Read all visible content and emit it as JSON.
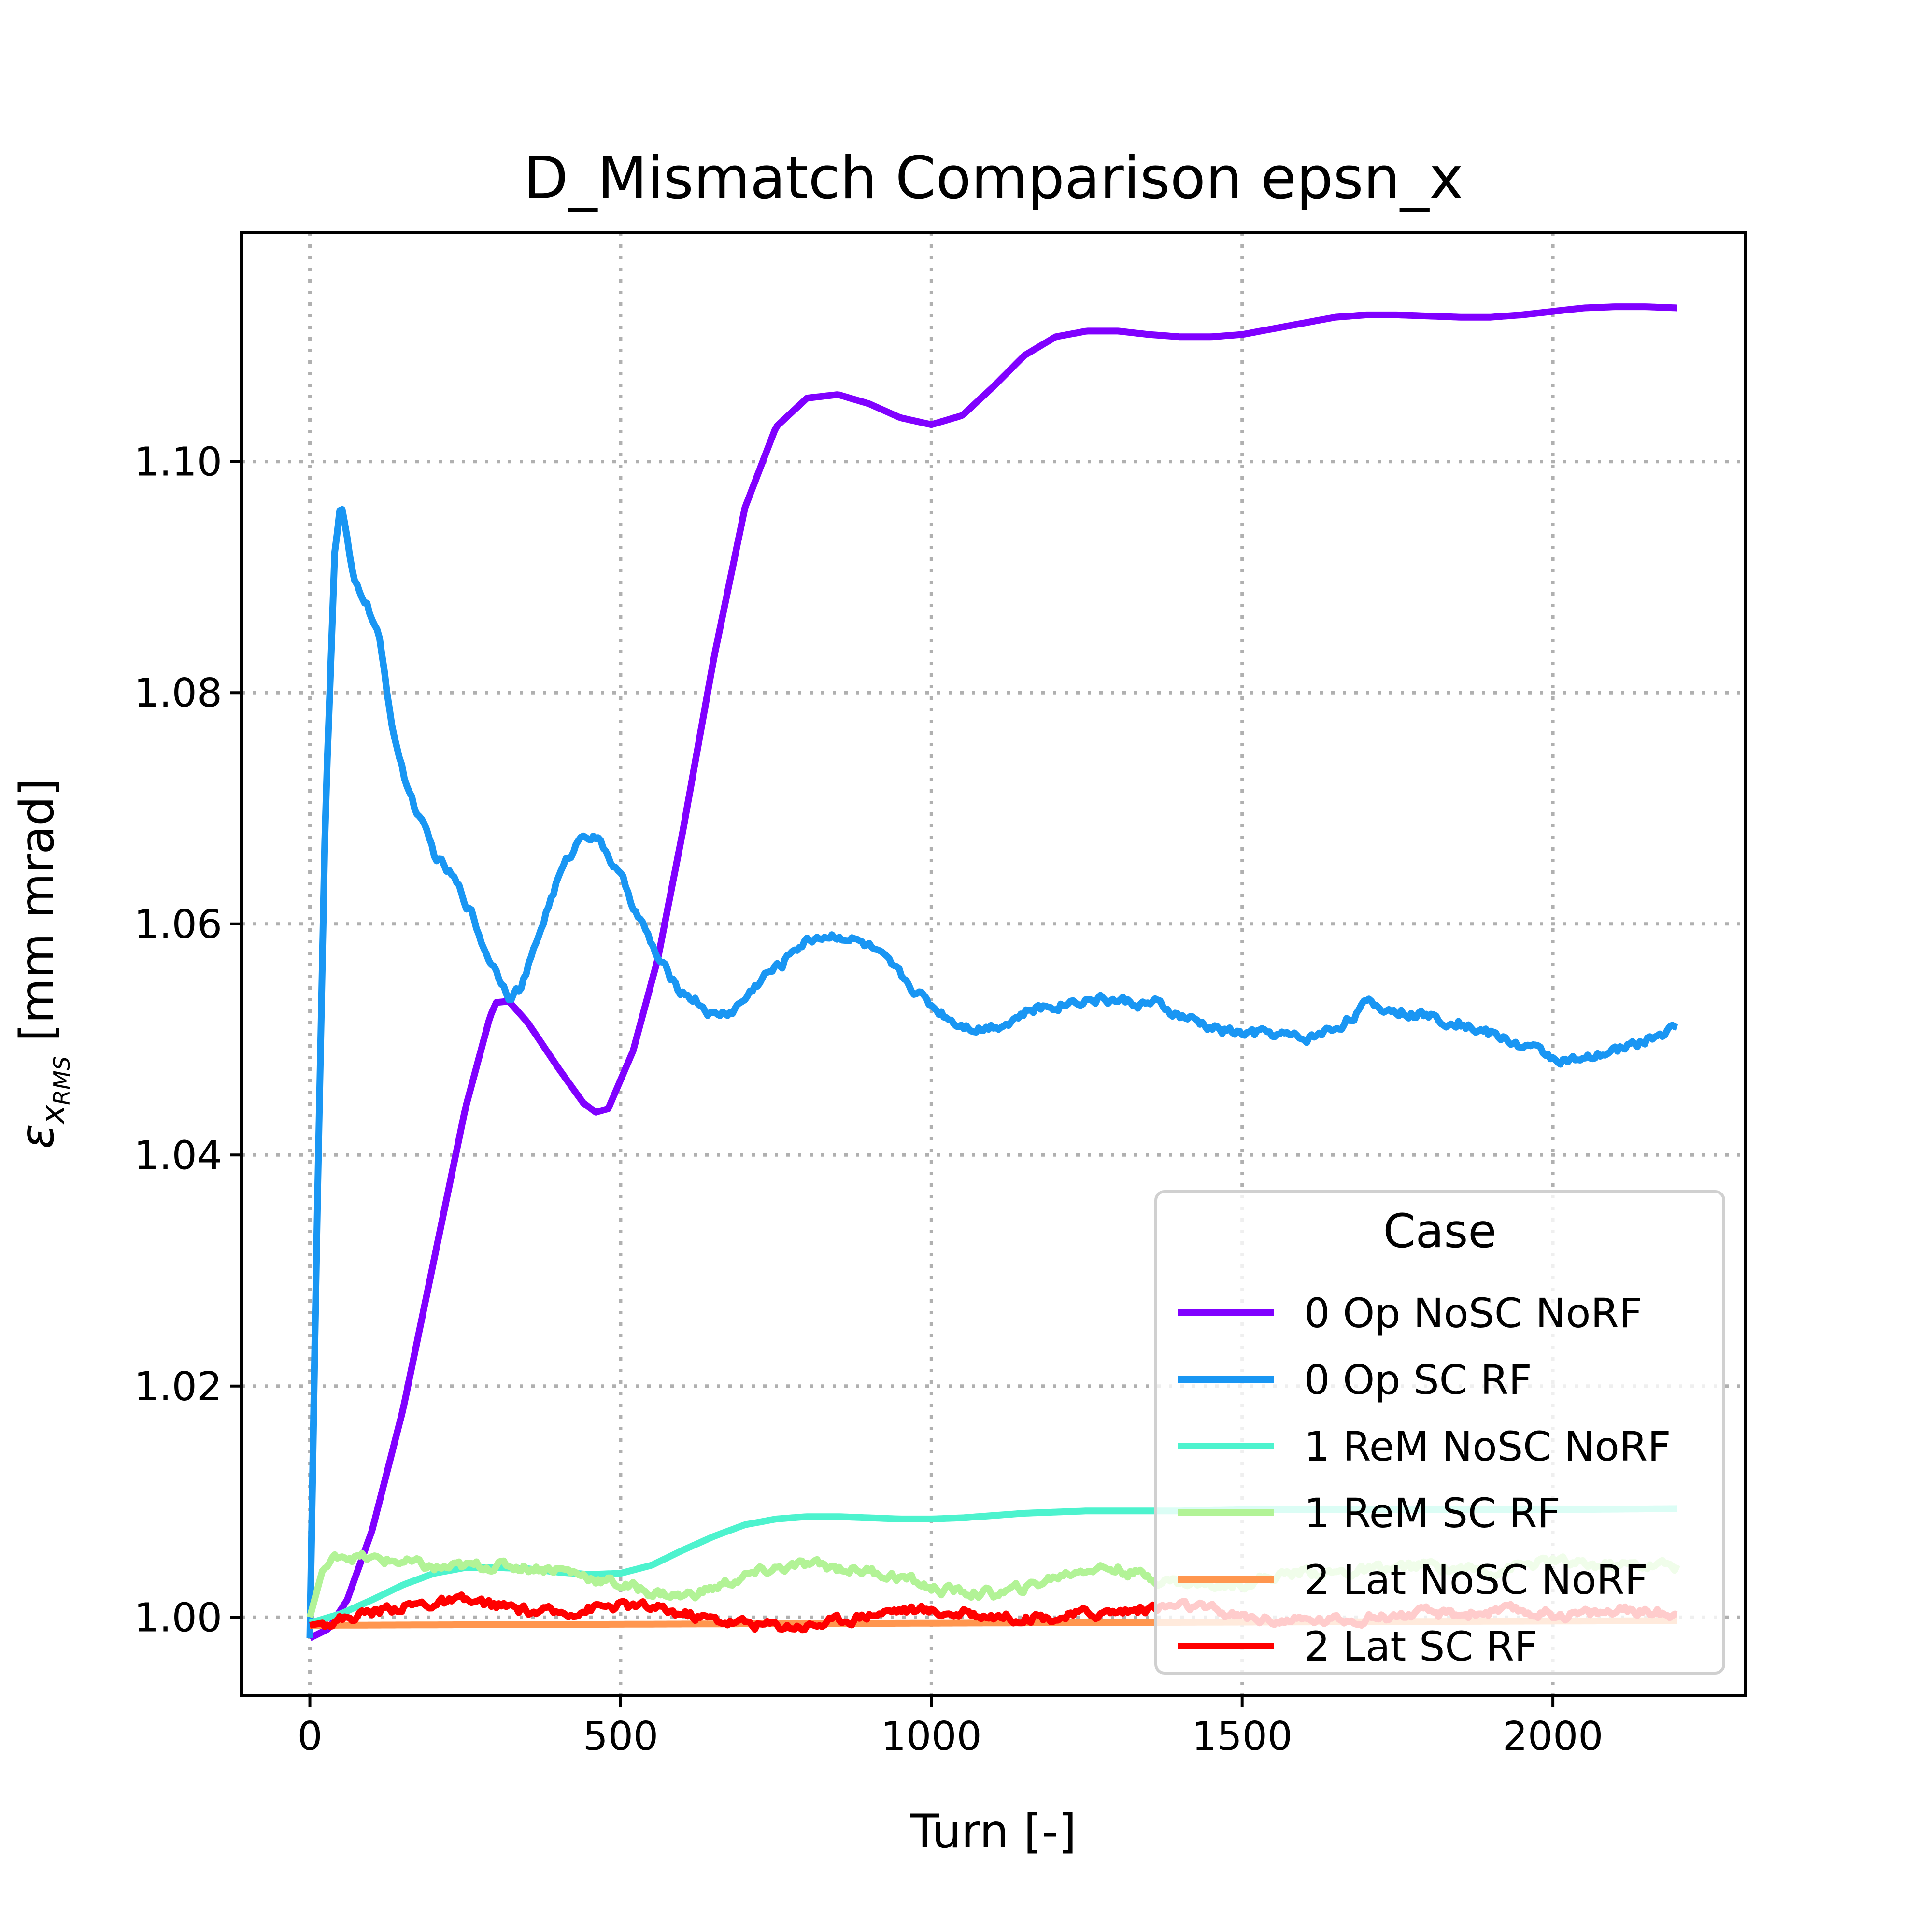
{
  "chart_data": {
    "type": "line",
    "title": "D_Mismatch Comparison epsn_x",
    "xlabel": "Turn [-]",
    "ylabel_main": "ε",
    "ylabel_sub": "x",
    "ylabel_subsub": "RMS",
    "ylabel_unit": " [mm mrad]",
    "xlim": [
      -110,
      2310
    ],
    "ylim": [
      0.9932,
      1.1198
    ],
    "xticks": [
      0,
      500,
      1000,
      1500,
      2000
    ],
    "xtick_labels": [
      "0",
      "500",
      "1000",
      "1500",
      "2000"
    ],
    "yticks": [
      1.0,
      1.02,
      1.04,
      1.06,
      1.08,
      1.1
    ],
    "ytick_labels": [
      "1.00",
      "1.02",
      "1.04",
      "1.06",
      "1.08",
      "1.10"
    ],
    "grid": true,
    "legend": {
      "title": "Case",
      "placement": "lower-right"
    },
    "series": [
      {
        "name": "0 Op NoSC NoRF",
        "color": "#8000ff",
        "noise": 0,
        "points": [
          [
            0,
            0.9982
          ],
          [
            30,
            0.999
          ],
          [
            60,
            1.0015
          ],
          [
            100,
            1.0075
          ],
          [
            150,
            1.018
          ],
          [
            200,
            1.031
          ],
          [
            250,
            1.044
          ],
          [
            290,
            1.052
          ],
          [
            300,
            1.0532
          ],
          [
            320,
            1.0533
          ],
          [
            350,
            1.0515
          ],
          [
            400,
            1.0475
          ],
          [
            440,
            1.0445
          ],
          [
            460,
            1.0437
          ],
          [
            480,
            1.044
          ],
          [
            520,
            1.049
          ],
          [
            560,
            1.057
          ],
          [
            600,
            1.068
          ],
          [
            650,
            1.083
          ],
          [
            700,
            1.096
          ],
          [
            750,
            1.103
          ],
          [
            800,
            1.1055
          ],
          [
            850,
            1.1058
          ],
          [
            900,
            1.105
          ],
          [
            950,
            1.1038
          ],
          [
            1000,
            1.1032
          ],
          [
            1050,
            1.104
          ],
          [
            1100,
            1.1065
          ],
          [
            1150,
            1.1092
          ],
          [
            1200,
            1.1108
          ],
          [
            1250,
            1.1113
          ],
          [
            1300,
            1.1113
          ],
          [
            1350,
            1.111
          ],
          [
            1400,
            1.1108
          ],
          [
            1450,
            1.1108
          ],
          [
            1500,
            1.111
          ],
          [
            1550,
            1.1115
          ],
          [
            1600,
            1.112
          ],
          [
            1650,
            1.1125
          ],
          [
            1700,
            1.1127
          ],
          [
            1750,
            1.1127
          ],
          [
            1800,
            1.1126
          ],
          [
            1850,
            1.1125
          ],
          [
            1900,
            1.1125
          ],
          [
            1950,
            1.1127
          ],
          [
            2000,
            1.113
          ],
          [
            2050,
            1.1133
          ],
          [
            2100,
            1.1134
          ],
          [
            2150,
            1.1134
          ],
          [
            2200,
            1.1133
          ]
        ]
      },
      {
        "name": "0 Op SC RF",
        "color": "#1996f3",
        "noise": 0.0007,
        "points": [
          [
            0,
            0.9982
          ],
          [
            10,
            1.03
          ],
          [
            25,
            1.07
          ],
          [
            40,
            1.092
          ],
          [
            50,
            1.0965
          ],
          [
            60,
            1.093
          ],
          [
            70,
            1.0895
          ],
          [
            90,
            1.088
          ],
          [
            110,
            1.085
          ],
          [
            130,
            1.078
          ],
          [
            150,
            1.073
          ],
          [
            170,
            1.07
          ],
          [
            200,
            1.066
          ],
          [
            230,
            1.064
          ],
          [
            260,
            1.061
          ],
          [
            280,
            1.058
          ],
          [
            300,
            1.056
          ],
          [
            320,
            1.054
          ],
          [
            340,
            1.0545
          ],
          [
            360,
            1.0575
          ],
          [
            380,
            1.061
          ],
          [
            400,
            1.064
          ],
          [
            420,
            1.066
          ],
          [
            440,
            1.068
          ],
          [
            460,
            1.0675
          ],
          [
            480,
            1.066
          ],
          [
            500,
            1.064
          ],
          [
            530,
            1.0605
          ],
          [
            560,
            1.057
          ],
          [
            590,
            1.0545
          ],
          [
            620,
            1.0535
          ],
          [
            650,
            1.052
          ],
          [
            680,
            1.0525
          ],
          [
            700,
            1.0535
          ],
          [
            730,
            1.0555
          ],
          [
            760,
            1.0565
          ],
          [
            780,
            1.058
          ],
          [
            820,
            1.059
          ],
          [
            860,
            1.059
          ],
          [
            900,
            1.058
          ],
          [
            940,
            1.056
          ],
          [
            980,
            1.054
          ],
          [
            1000,
            1.053
          ],
          [
            1040,
            1.0515
          ],
          [
            1080,
            1.051
          ],
          [
            1120,
            1.0515
          ],
          [
            1160,
            1.0525
          ],
          [
            1200,
            1.053
          ],
          [
            1240,
            1.0535
          ],
          [
            1280,
            1.0535
          ],
          [
            1320,
            1.0532
          ],
          [
            1360,
            1.053
          ],
          [
            1400,
            1.052
          ],
          [
            1450,
            1.051
          ],
          [
            1500,
            1.0505
          ],
          [
            1550,
            1.0505
          ],
          [
            1600,
            1.05
          ],
          [
            1650,
            1.051
          ],
          [
            1700,
            1.053
          ],
          [
            1750,
            1.0525
          ],
          [
            1800,
            1.052
          ],
          [
            1850,
            1.0515
          ],
          [
            1900,
            1.0505
          ],
          [
            1950,
            1.0495
          ],
          [
            2000,
            1.0485
          ],
          [
            2050,
            1.048
          ],
          [
            2100,
            1.049
          ],
          [
            2150,
            1.05
          ],
          [
            2200,
            1.051
          ]
        ]
      },
      {
        "name": "1 ReM NoSC NoRF",
        "color": "#4df3ce",
        "noise": 0,
        "points": [
          [
            0,
            0.9995
          ],
          [
            50,
            1.0003
          ],
          [
            100,
            1.0015
          ],
          [
            150,
            1.0028
          ],
          [
            200,
            1.0038
          ],
          [
            250,
            1.0043
          ],
          [
            300,
            1.0043
          ],
          [
            350,
            1.0042
          ],
          [
            400,
            1.0039
          ],
          [
            450,
            1.0037
          ],
          [
            500,
            1.0038
          ],
          [
            550,
            1.0045
          ],
          [
            600,
            1.0058
          ],
          [
            650,
            1.007
          ],
          [
            700,
            1.008
          ],
          [
            750,
            1.0085
          ],
          [
            800,
            1.0087
          ],
          [
            850,
            1.0087
          ],
          [
            900,
            1.0086
          ],
          [
            950,
            1.0085
          ],
          [
            1000,
            1.0085
          ],
          [
            1050,
            1.0086
          ],
          [
            1100,
            1.0088
          ],
          [
            1150,
            1.009
          ],
          [
            1200,
            1.0091
          ],
          [
            1250,
            1.0092
          ],
          [
            1300,
            1.0092
          ],
          [
            1400,
            1.0092
          ],
          [
            1500,
            1.0093
          ],
          [
            1600,
            1.0093
          ],
          [
            1800,
            1.0093
          ],
          [
            2000,
            1.0093
          ],
          [
            2200,
            1.0094
          ]
        ]
      },
      {
        "name": "1 ReM SC RF",
        "color": "#b2f396",
        "noise": 0.0007,
        "points": [
          [
            0,
            1.0
          ],
          [
            20,
            1.004
          ],
          [
            50,
            1.0055
          ],
          [
            100,
            1.005
          ],
          [
            150,
            1.0048
          ],
          [
            200,
            1.0042
          ],
          [
            300,
            1.0045
          ],
          [
            400,
            1.0042
          ],
          [
            450,
            1.0035
          ],
          [
            500,
            1.0028
          ],
          [
            550,
            1.0022
          ],
          [
            600,
            1.0018
          ],
          [
            650,
            1.0025
          ],
          [
            700,
            1.0035
          ],
          [
            750,
            1.0042
          ],
          [
            800,
            1.0045
          ],
          [
            850,
            1.0043
          ],
          [
            900,
            1.004
          ],
          [
            950,
            1.0035
          ],
          [
            1000,
            1.0025
          ],
          [
            1050,
            1.0022
          ],
          [
            1100,
            1.002
          ],
          [
            1150,
            1.0025
          ],
          [
            1200,
            1.0035
          ],
          [
            1250,
            1.0043
          ],
          [
            1300,
            1.0042
          ],
          [
            1350,
            1.0035
          ],
          [
            1400,
            1.003
          ],
          [
            1450,
            1.0028
          ],
          [
            1500,
            1.003
          ],
          [
            1550,
            1.0035
          ],
          [
            1600,
            1.004
          ],
          [
            1650,
            1.0038
          ],
          [
            1700,
            1.004
          ],
          [
            1750,
            1.0042
          ],
          [
            1800,
            1.0045
          ],
          [
            1850,
            1.0042
          ],
          [
            1900,
            1.004
          ],
          [
            1950,
            1.0045
          ],
          [
            2000,
            1.0048
          ],
          [
            2050,
            1.0045
          ],
          [
            2100,
            1.0045
          ],
          [
            2150,
            1.0045
          ],
          [
            2200,
            1.0045
          ]
        ]
      },
      {
        "name": "2 Lat NoSC NoRF",
        "color": "#ff964f",
        "noise": 0,
        "points": [
          [
            0,
            0.9993
          ],
          [
            2200,
            0.9997
          ]
        ]
      },
      {
        "name": "2 Lat SC RF",
        "color": "#ff0000",
        "noise": 0.0007,
        "points": [
          [
            0,
            0.9993
          ],
          [
            50,
            0.9998
          ],
          [
            100,
            1.0005
          ],
          [
            150,
            1.001
          ],
          [
            200,
            1.0012
          ],
          [
            250,
            1.0013
          ],
          [
            300,
            1.001
          ],
          [
            350,
            1.0005
          ],
          [
            400,
            1.0003
          ],
          [
            450,
            1.0008
          ],
          [
            500,
            1.001
          ],
          [
            550,
            1.0008
          ],
          [
            600,
            1.0003
          ],
          [
            650,
            0.9998
          ],
          [
            700,
            0.9995
          ],
          [
            750,
            0.9993
          ],
          [
            800,
            0.9993
          ],
          [
            850,
            0.9997
          ],
          [
            900,
            1.0003
          ],
          [
            950,
            1.0007
          ],
          [
            1000,
            1.0005
          ],
          [
            1050,
            1.0003
          ],
          [
            1100,
            1.0002
          ],
          [
            1150,
            1.0
          ],
          [
            1200,
            1.0
          ],
          [
            1250,
            1.0003
          ],
          [
            1300,
            1.0005
          ],
          [
            1350,
            1.0008
          ],
          [
            1400,
            1.001
          ],
          [
            1450,
            1.0006
          ],
          [
            1500,
            1.0
          ],
          [
            1550,
            0.9998
          ],
          [
            1600,
            0.9997
          ],
          [
            1650,
            0.9998
          ],
          [
            1700,
            1.0
          ],
          [
            1750,
            1.0002
          ],
          [
            1800,
            1.0003
          ],
          [
            1850,
            1.0003
          ],
          [
            1900,
            1.0005
          ],
          [
            1950,
            1.0005
          ],
          [
            2000,
            1.0003
          ],
          [
            2050,
            1.0003
          ],
          [
            2100,
            1.0005
          ],
          [
            2150,
            1.0005
          ],
          [
            2200,
            1.0003
          ]
        ]
      }
    ]
  }
}
